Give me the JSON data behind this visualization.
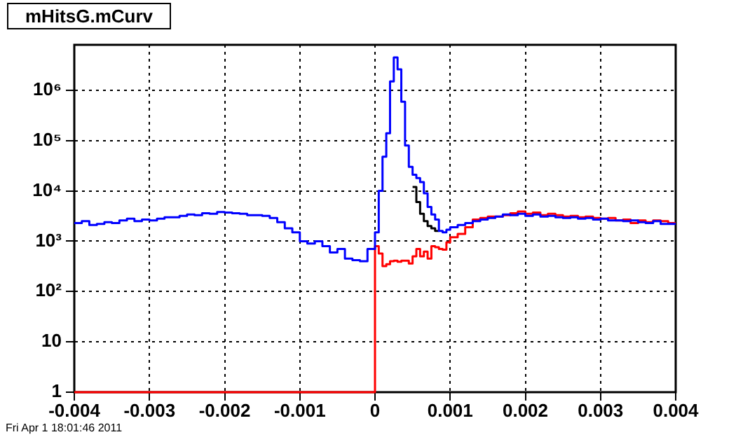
{
  "chart_data": {
    "type": "histogram",
    "title": "mHitsG.mCurv",
    "annotations": [
      "Fri Apr  1 18:01:46 2011"
    ],
    "bins": [
      -0.004,
      -0.0039,
      -0.0038,
      -0.0037,
      -0.0036,
      -0.0035,
      -0.0034,
      -0.0033,
      -0.0032,
      -0.0031,
      -0.003,
      -0.0029,
      -0.0028,
      -0.0027,
      -0.0026,
      -0.0025,
      -0.0024,
      -0.0023,
      -0.0022,
      -0.0021,
      -0.002,
      -0.0019,
      -0.0018,
      -0.0017,
      -0.0016,
      -0.0015,
      -0.0014,
      -0.0013,
      -0.0012,
      -0.0011,
      -0.001,
      -0.0009,
      -0.0008,
      -0.0007,
      -0.0006,
      -0.0005,
      -0.0004,
      -0.0003,
      -0.0002,
      -0.0001,
      0,
      5e-05,
      0.0001,
      0.00015,
      0.0002,
      0.00025,
      0.0003,
      0.00035,
      0.0004,
      0.00045,
      0.0005,
      0.00055,
      0.0006,
      0.00065,
      0.0007,
      0.00075,
      0.0008,
      0.00085,
      0.0009,
      0.00095,
      0.001,
      0.0011,
      0.0012,
      0.0013,
      0.0014,
      0.0015,
      0.0016,
      0.0017,
      0.0018,
      0.0019,
      0.002,
      0.0021,
      0.0022,
      0.0023,
      0.0024,
      0.0025,
      0.0026,
      0.0027,
      0.0028,
      0.0029,
      0.003,
      0.0031,
      0.0032,
      0.0033,
      0.0034,
      0.0035,
      0.0036,
      0.0037,
      0.0038,
      0.0039,
      0.004
    ],
    "series": [
      {
        "color": "#0000ff",
        "values": [
          2300,
          2500,
          2100,
          2200,
          2400,
          2300,
          2600,
          2800,
          2500,
          2700,
          2600,
          2800,
          3000,
          3000,
          3200,
          3400,
          3300,
          3600,
          3500,
          3800,
          3700,
          3600,
          3500,
          3300,
          3300,
          3200,
          2900,
          2400,
          1800,
          1500,
          1000,
          900,
          1000,
          800,
          600,
          700,
          450,
          420,
          400,
          700,
          1500,
          10000,
          48000,
          140000,
          1500000,
          4500000,
          2600000,
          590000,
          80000,
          30000,
          21000,
          18000,
          15000,
          9000,
          4800,
          3400,
          2700,
          1600,
          1500,
          1700,
          1900,
          2100,
          2300,
          2500,
          2700,
          2900,
          3100,
          3400,
          3300,
          3500,
          3200,
          3400,
          3100,
          3200,
          3000,
          2900,
          3000,
          2800,
          2900,
          2700,
          2800,
          2600,
          2600,
          2500,
          2600,
          2400,
          2300,
          2500,
          2200,
          2200
        ]
      },
      {
        "color": "#000000",
        "bins": [
          0.0005,
          0.00055,
          0.0006,
          0.00065,
          0.0007,
          0.00075,
          0.0008,
          0.00085
        ],
        "values": [
          12000,
          6000,
          3500,
          2500,
          2000,
          1800,
          1600
        ]
      },
      {
        "color": "#ff0000",
        "values": [
          1,
          1,
          1,
          1,
          1,
          1,
          1,
          1,
          1,
          1,
          1,
          1,
          1,
          1,
          1,
          1,
          1,
          1,
          1,
          1,
          1,
          1,
          1,
          1,
          1,
          1,
          1,
          1,
          1,
          1,
          1,
          1,
          1,
          1,
          1,
          1,
          1,
          1,
          1,
          1,
          800,
          570,
          320,
          350,
          400,
          410,
          390,
          410,
          410,
          360,
          500,
          700,
          500,
          620,
          450,
          800,
          760,
          700,
          680,
          950,
          1200,
          1400,
          1900,
          2700,
          2900,
          3100,
          3100,
          3300,
          3600,
          3900,
          3500,
          3700,
          3300,
          3500,
          3300,
          3100,
          3200,
          3000,
          3100,
          2900,
          2800,
          2900,
          2600,
          2700,
          2300,
          2600,
          2400,
          2600,
          2500,
          2300
        ]
      }
    ],
    "log": "y",
    "xlim": [
      -0.004,
      0.004
    ],
    "ylim": [
      1,
      8000000
    ],
    "xticks": [
      -0.004,
      -0.003,
      -0.002,
      -0.001,
      0,
      0.001,
      0.002,
      0.003,
      0.004
    ],
    "yticks": [
      1,
      10,
      {
        "value": 100,
        "label": "10²"
      },
      {
        "value": 1000,
        "label": "10³"
      },
      {
        "value": 10000,
        "label": "10⁴"
      },
      {
        "value": 100000,
        "label": "10⁵"
      },
      {
        "value": 1000000,
        "label": "10⁶"
      }
    ],
    "grid": true,
    "line_style": "solid",
    "marker": "none",
    "legend": false
  }
}
